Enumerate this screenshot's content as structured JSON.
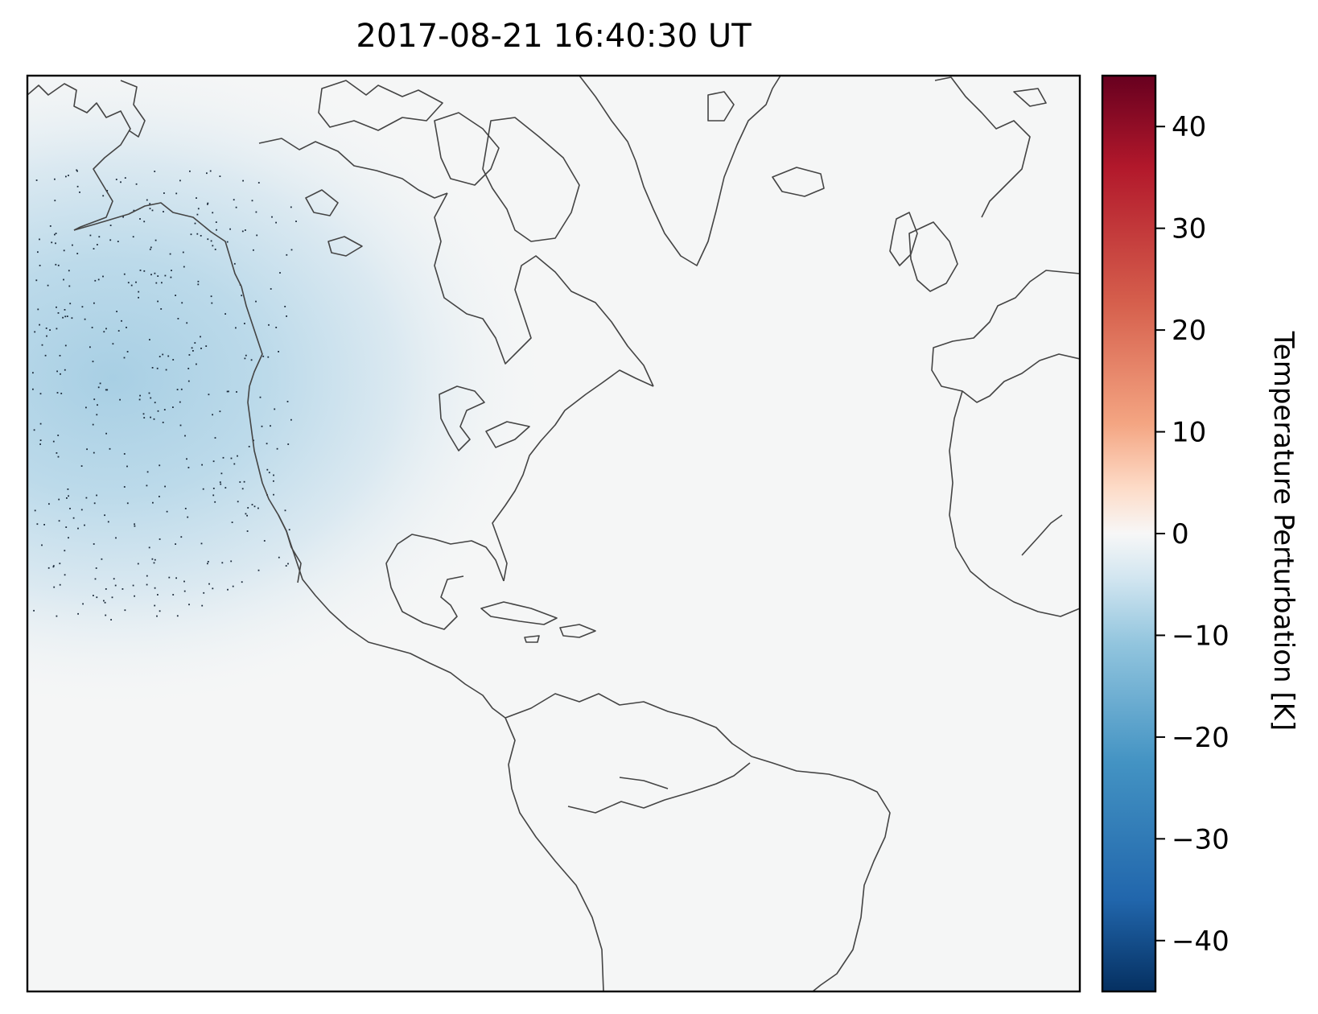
{
  "title": "2017-08-21 16:40:30 UT",
  "colorbar": {
    "label": "Temperature Perturbation [K]",
    "min": -45,
    "max": 45,
    "ticks": [
      "40",
      "30",
      "20",
      "10",
      "0",
      "−10",
      "−20",
      "−30",
      "−40"
    ],
    "tick_values": [
      40,
      30,
      20,
      10,
      0,
      -10,
      -20,
      -30,
      -40
    ],
    "colormap": "RdBu_r",
    "colors": {
      "low": "#08306b",
      "mid": "#f7f7f7",
      "high": "#67001f"
    }
  },
  "map": {
    "region": "North Atlantic / Americas",
    "field_min_k": -15,
    "background_color": "#f5f6f6",
    "coastline_color": "#444444"
  }
}
